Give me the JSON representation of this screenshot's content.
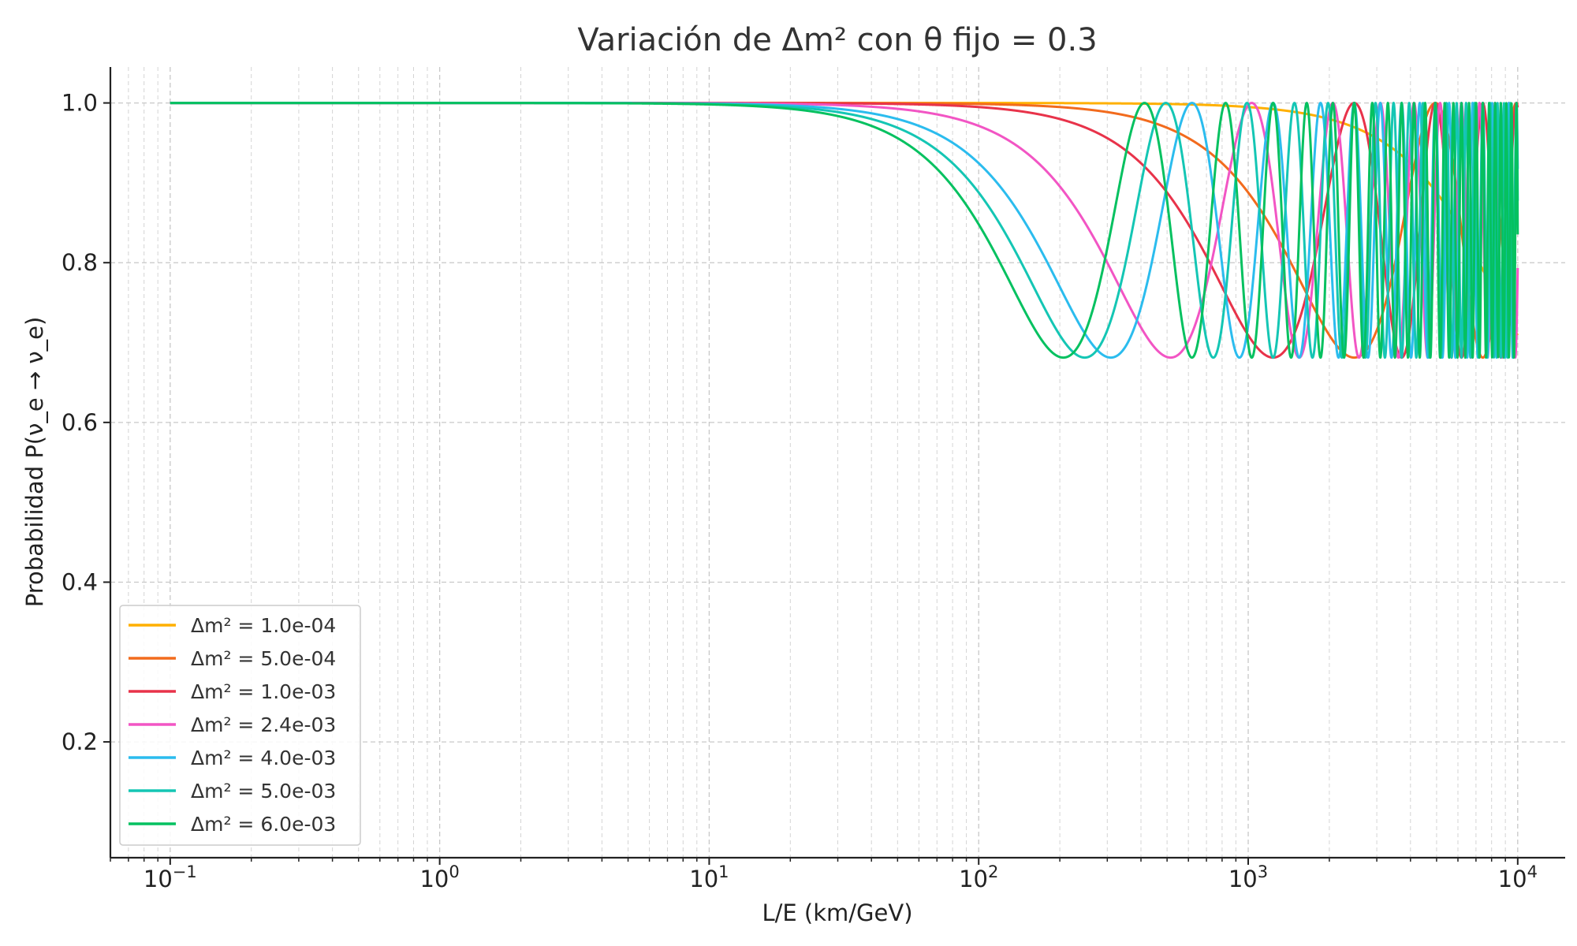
{
  "chart_data": {
    "type": "line",
    "title": "Variación de Δm² con θ fijo = 0.3",
    "xlabel": "L/E (km/GeV)",
    "ylabel": "Probabilidad P(ν_e → ν_e)",
    "x_scale": "log",
    "xlim": [
      0.06,
      15000
    ],
    "ylim": [
      0.055,
      1.045
    ],
    "x_range": [
      0.1,
      10000
    ],
    "x_ticks": [
      {
        "value": 0.1,
        "base": "10",
        "exp": "−1"
      },
      {
        "value": 1,
        "base": "10",
        "exp": "0"
      },
      {
        "value": 10,
        "base": "10",
        "exp": "1"
      },
      {
        "value": 100,
        "base": "10",
        "exp": "2"
      },
      {
        "value": 1000,
        "base": "10",
        "exp": "3"
      },
      {
        "value": 10000,
        "base": "10",
        "exp": "4"
      }
    ],
    "y_ticks": [
      {
        "value": 0.2,
        "label": "0.2"
      },
      {
        "value": 0.4,
        "label": "0.4"
      },
      {
        "value": 0.6,
        "label": "0.6"
      },
      {
        "value": 0.8,
        "label": "0.8"
      },
      {
        "value": 1.0,
        "label": "1.0"
      }
    ],
    "theta": 0.3,
    "formula": "P = 1 - sin²(2θ)·sin²(1.27·Δm²·L/E)",
    "grid": "both",
    "legend_position": "lower-left",
    "series": [
      {
        "name": "Δm² = 1.0e-04",
        "dm2": 0.0001,
        "color": "#FFB000"
      },
      {
        "name": "Δm² = 5.0e-04",
        "dm2": 0.0005,
        "color": "#F26B1D"
      },
      {
        "name": "Δm² = 1.0e-03",
        "dm2": 0.001,
        "color": "#E8334A"
      },
      {
        "name": "Δm² = 2.4e-03",
        "dm2": 0.0024,
        "color": "#F255C4"
      },
      {
        "name": "Δm² = 4.0e-03",
        "dm2": 0.004,
        "color": "#2BBCEE"
      },
      {
        "name": "Δm² = 5.0e-03",
        "dm2": 0.005,
        "color": "#14C6B4"
      },
      {
        "name": "Δm² = 6.0e-03",
        "dm2": 0.006,
        "color": "#05C160"
      }
    ]
  }
}
